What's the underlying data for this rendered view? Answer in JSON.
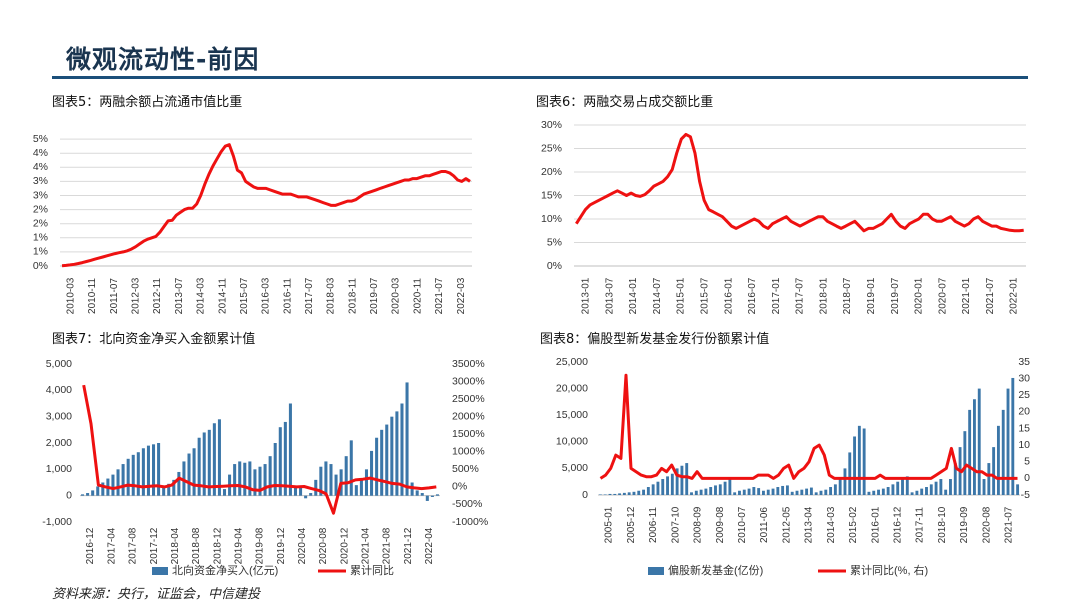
{
  "page": {
    "title": "微观流动性-前因",
    "source": "资料来源：央行，证监会，中信建投"
  },
  "colors": {
    "line": "#ee1111",
    "bar": "#3b76a8",
    "grid": "#d9d9d9",
    "rule": "#1b4f7a"
  },
  "chart_data": [
    {
      "id": "fig5",
      "caption": "图表5：两融余额占流通市值比重",
      "type": "line",
      "grid": true,
      "ylim": [
        0,
        5
      ],
      "y_ticks": [
        "0%",
        "1%",
        "1%",
        "2%",
        "2%",
        "3%",
        "3%",
        "4%",
        "4%",
        "5%"
      ],
      "y_tick_values": [
        0,
        0.5,
        1,
        1.5,
        2,
        2.5,
        3,
        3.5,
        4,
        4.5
      ],
      "x_labels": [
        "2010-03",
        "2010-11",
        "2011-07",
        "2012-03",
        "2012-11",
        "2013-07",
        "2014-03",
        "2014-11",
        "2015-07",
        "2016-03",
        "2016-11",
        "2017-07",
        "2018-03",
        "2018-11",
        "2019-07",
        "2020-03",
        "2020-11",
        "2021-07",
        "2022-03"
      ],
      "series": [
        {
          "values": [
            0.01,
            0.02,
            0.04,
            0.06,
            0.09,
            0.12,
            0.16,
            0.2,
            0.24,
            0.28,
            0.32,
            0.36,
            0.4,
            0.44,
            0.47,
            0.5,
            0.54,
            0.6,
            0.68,
            0.78,
            0.88,
            0.95,
            1.0,
            1.05,
            1.2,
            1.4,
            1.6,
            1.62,
            1.8,
            1.9,
            2.0,
            2.05,
            2.05,
            2.2,
            2.5,
            2.9,
            3.25,
            3.55,
            3.8,
            4.05,
            4.25,
            4.3,
            3.9,
            3.4,
            3.3,
            3.0,
            2.9,
            2.8,
            2.75,
            2.75,
            2.75,
            2.7,
            2.65,
            2.6,
            2.55,
            2.55,
            2.55,
            2.5,
            2.45,
            2.45,
            2.45,
            2.4,
            2.35,
            2.3,
            2.25,
            2.2,
            2.15,
            2.15,
            2.2,
            2.25,
            2.3,
            2.3,
            2.35,
            2.45,
            2.55,
            2.6,
            2.65,
            2.7,
            2.75,
            2.8,
            2.85,
            2.9,
            2.95,
            3.0,
            3.05,
            3.05,
            3.1,
            3.1,
            3.15,
            3.2,
            3.2,
            3.25,
            3.3,
            3.35,
            3.35,
            3.3,
            3.2,
            3.05,
            3.0,
            3.1,
            3.0
          ]
        }
      ]
    },
    {
      "id": "fig6",
      "caption": "图表6：两融交易占成交额比重",
      "type": "line",
      "grid": true,
      "ylim": [
        0,
        30
      ],
      "y_ticks": [
        "0%",
        "5%",
        "10%",
        "15%",
        "20%",
        "25%",
        "30%"
      ],
      "y_tick_values": [
        0,
        5,
        10,
        15,
        20,
        25,
        30
      ],
      "x_labels": [
        "2013-01",
        "2013-07",
        "2014-01",
        "2014-07",
        "2015-01",
        "2015-07",
        "2016-01",
        "2016-07",
        "2017-01",
        "2017-07",
        "2018-01",
        "2018-07",
        "2019-01",
        "2019-07",
        "2020-01",
        "2020-07",
        "2021-01",
        "2021-07",
        "2022-01"
      ],
      "series": [
        {
          "values": [
            9,
            10.5,
            12,
            13,
            13.5,
            14,
            14.5,
            15,
            15.5,
            16,
            15.5,
            15,
            15.5,
            15,
            14.8,
            15.2,
            16,
            17,
            17.5,
            18,
            19,
            20.5,
            24,
            27,
            28,
            27.5,
            24,
            18,
            14,
            12,
            11.5,
            11,
            10.5,
            9.5,
            8.5,
            8,
            8.5,
            9,
            9.5,
            10,
            9.5,
            8.5,
            8,
            9,
            9.5,
            10,
            10.5,
            9.5,
            9,
            8.5,
            9,
            9.5,
            10,
            10.5,
            10.5,
            9.5,
            9,
            8.5,
            8,
            8.5,
            9,
            9.5,
            8.5,
            7.5,
            8,
            8,
            8.5,
            9,
            10,
            11,
            9.5,
            8.5,
            8,
            9,
            9.5,
            10,
            11,
            11,
            10,
            9.5,
            9.5,
            10,
            10.5,
            9.5,
            9,
            8.5,
            9,
            10,
            10.5,
            9.5,
            9,
            8.5,
            8.5,
            8,
            7.8,
            7.6,
            7.5,
            7.5,
            7.6
          ]
        }
      ]
    },
    {
      "id": "fig7",
      "caption": "图表7：北向资金净买入金额累计值",
      "type": "bar+line",
      "grid": false,
      "ylim": [
        -1000,
        5000
      ],
      "y2lim": [
        -1000,
        3500
      ],
      "y_ticks": [
        "-1,000",
        "0",
        "1,000",
        "2,000",
        "3,000",
        "4,000",
        "5,000"
      ],
      "y_tick_values": [
        -1000,
        0,
        1000,
        2000,
        3000,
        4000,
        5000
      ],
      "y2_ticks": [
        "-1000%",
        "-500%",
        "0%",
        "500%",
        "1000%",
        "1500%",
        "2000%",
        "2500%",
        "3000%",
        "3500%"
      ],
      "y2_tick_values": [
        -1000,
        -500,
        0,
        500,
        1000,
        1500,
        2000,
        2500,
        3000,
        3500
      ],
      "x_labels": [
        "2016-12",
        "2017-04",
        "2017-08",
        "2017-12",
        "2018-04",
        "2018-08",
        "2018-12",
        "2019-04",
        "2019-08",
        "2019-12",
        "2020-04",
        "2020-08",
        "2020-12",
        "2021-04",
        "2021-08",
        "2021-12",
        "2022-04"
      ],
      "legend": [
        "北向资金净买入(亿元)",
        "累计同比"
      ],
      "series": [
        {
          "name": "北向资金净买入(亿元)",
          "kind": "bar",
          "values": [
            50,
            100,
            200,
            350,
            500,
            650,
            800,
            1000,
            1200,
            1400,
            1550,
            1650,
            1800,
            1900,
            1950,
            2000,
            300,
            450,
            600,
            900,
            1300,
            1600,
            1800,
            2200,
            2400,
            2500,
            2750,
            2900,
            250,
            800,
            1200,
            1300,
            1250,
            1300,
            1000,
            1100,
            1200,
            1500,
            2000,
            2600,
            2800,
            3500,
            300,
            300,
            -100,
            100,
            600,
            1100,
            1300,
            1200,
            800,
            1000,
            1500,
            2100,
            400,
            600,
            1000,
            1700,
            2200,
            2500,
            2700,
            3000,
            3200,
            3500,
            4300,
            500,
            200,
            100,
            -200,
            -50,
            50
          ]
        },
        {
          "name": "累计同比",
          "kind": "line",
          "values": [
            2900,
            1800,
            50,
            0,
            -50,
            0,
            50,
            30,
            0,
            20,
            30,
            0,
            50,
            250,
            150,
            50,
            30,
            0,
            10,
            20,
            30,
            40,
            0,
            -80,
            -100,
            0,
            40,
            30,
            20,
            0,
            10,
            -50,
            -100,
            -200,
            -750,
            100,
            120,
            200,
            220,
            250,
            200,
            150,
            100,
            80,
            0,
            -30,
            -50,
            -30,
            0
          ]
        }
      ]
    },
    {
      "id": "fig8",
      "caption": "图表8：偏股型新发基金发行份额累计值",
      "type": "bar+line",
      "grid": false,
      "ylim": [
        0,
        25000
      ],
      "y2lim": [
        -5,
        35
      ],
      "y_ticks": [
        "0",
        "5,000",
        "10,000",
        "15,000",
        "20,000",
        "25,000"
      ],
      "y_tick_values": [
        0,
        5000,
        10000,
        15000,
        20000,
        25000
      ],
      "y2_ticks": [
        "-5",
        "0",
        "5",
        "10",
        "15",
        "20",
        "25",
        "30",
        "35"
      ],
      "y2_tick_values": [
        -5,
        0,
        5,
        10,
        15,
        20,
        25,
        30,
        35
      ],
      "x_labels": [
        "2005-01",
        "2005-12",
        "2006-11",
        "2007-10",
        "2008-09",
        "2009-08",
        "2010-07",
        "2011-06",
        "2012-05",
        "2013-04",
        "2014-03",
        "2015-02",
        "2016-01",
        "2016-12",
        "2017-11",
        "2018-10",
        "2019-09",
        "2020-08",
        "2021-07"
      ],
      "legend": [
        "偏股新发基金(亿份)",
        "累计同比(%, 右)"
      ],
      "series": [
        {
          "name": "偏股新发基金(亿份)",
          "kind": "bar",
          "values": [
            100,
            100,
            200,
            200,
            300,
            400,
            500,
            600,
            800,
            1000,
            1500,
            2000,
            2500,
            3000,
            3500,
            4000,
            5000,
            5500,
            6000,
            500,
            800,
            1000,
            1200,
            1500,
            1800,
            2000,
            2500,
            3000,
            500,
            800,
            1000,
            1200,
            1500,
            1300,
            800,
            1000,
            1200,
            1500,
            1700,
            1800,
            600,
            800,
            1000,
            1200,
            1400,
            500,
            800,
            1000,
            1500,
            2000,
            3000,
            5000,
            8000,
            11000,
            13000,
            12500,
            600,
            800,
            1000,
            1200,
            1500,
            2000,
            2500,
            3000,
            3500,
            500,
            800,
            1200,
            1500,
            2000,
            2500,
            3000,
            1000,
            3000,
            6000,
            9000,
            12000,
            16000,
            18000,
            20000,
            3000,
            6000,
            9000,
            13000,
            16000,
            20000,
            22000,
            2000
          ]
        },
        {
          "name": "累计同比(%, 右)",
          "kind": "line",
          "values": [
            0,
            1,
            3,
            7,
            6,
            31,
            3,
            2,
            1,
            0.5,
            0.5,
            1,
            3,
            2,
            4,
            1,
            0.5,
            0.5,
            0,
            2,
            0,
            0,
            0,
            0,
            0,
            0,
            0,
            0,
            0,
            0,
            0,
            1,
            1,
            1,
            0,
            1,
            3,
            4,
            0,
            2,
            3,
            5,
            9,
            10,
            7,
            1,
            0,
            0,
            0,
            0,
            0,
            0,
            0,
            0,
            0,
            1,
            0,
            0,
            0,
            0,
            0,
            0,
            0,
            0,
            0,
            0,
            1,
            2,
            3,
            9,
            3,
            2,
            4,
            3,
            2,
            2,
            1,
            1,
            0,
            0,
            0,
            0,
            0
          ]
        }
      ]
    }
  ]
}
